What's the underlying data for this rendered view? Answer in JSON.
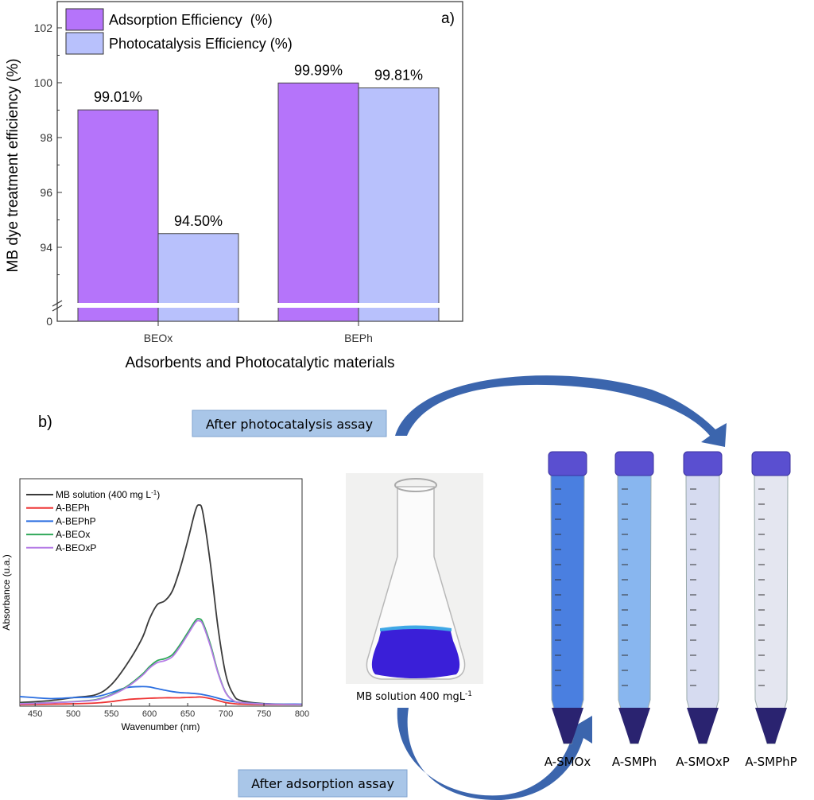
{
  "chart_data": [
    {
      "type": "bar",
      "panel_label": "a)",
      "ylabel": "MB dye treatment efficiency (%)",
      "xlabel": "Adsorbents and Photocatalytic materials",
      "categories": [
        "BEOx",
        "BEPh"
      ],
      "yticks": [
        "0",
        "94",
        "96",
        "98",
        "100",
        "102"
      ],
      "ylim_upper_segment": [
        92,
        103
      ],
      "axis_break": true,
      "legend_position": "top-left",
      "series": [
        {
          "name": "Adsorption Efficiency  (%)",
          "color": "#b574fa",
          "values": [
            99.01,
            99.99
          ],
          "labels": [
            "99.01%",
            "99.99%"
          ]
        },
        {
          "name": "Photocatalysis Efficiency (%)",
          "color": "#b8c1fc",
          "values": [
            94.5,
            99.81
          ],
          "labels": [
            "94.50%",
            "99.81%"
          ]
        }
      ]
    },
    {
      "type": "line",
      "panel_label": "b)",
      "xlabel": "Wavenumber (nm)",
      "ylabel": "Absorbance (u.a.)",
      "xlim": [
        430,
        800
      ],
      "xticks": [
        "450",
        "500",
        "550",
        "600",
        "650",
        "700",
        "750",
        "800"
      ],
      "legend_position": "top-left",
      "x": [
        430,
        470,
        500,
        530,
        550,
        570,
        590,
        600,
        610,
        620,
        630,
        640,
        650,
        660,
        665,
        670,
        680,
        690,
        700,
        710,
        720,
        750,
        800
      ],
      "series": [
        {
          "name": "MB solution (400 mg L",
          "sup": "-1",
          "tail": ")",
          "color": "#3a3a3a",
          "values": [
            0.01,
            0.02,
            0.035,
            0.05,
            0.1,
            0.2,
            0.33,
            0.43,
            0.5,
            0.52,
            0.57,
            0.68,
            0.82,
            0.97,
            1.0,
            0.96,
            0.7,
            0.38,
            0.15,
            0.05,
            0.02,
            0.005,
            0
          ]
        },
        {
          "name": "A-BEPh",
          "color": "#ee3535",
          "values": [
            0,
            0.002,
            0.004,
            0.008,
            0.015,
            0.025,
            0.03,
            0.032,
            0.033,
            0.034,
            0.034,
            0.034,
            0.036,
            0.037,
            0.038,
            0.037,
            0.03,
            0.02,
            0.01,
            0.005,
            0.002,
            0,
            0
          ]
        },
        {
          "name": "A-BEPhP",
          "color": "#2a6ee0",
          "values": [
            0.04,
            0.03,
            0.035,
            0.04,
            0.06,
            0.085,
            0.09,
            0.088,
            0.08,
            0.072,
            0.065,
            0.06,
            0.058,
            0.055,
            0.053,
            0.05,
            0.042,
            0.032,
            0.022,
            0.015,
            0.01,
            0.004,
            0.002
          ]
        },
        {
          "name": "A-BEOx",
          "color": "#2fa85a",
          "values": [
            0.005,
            0.01,
            0.015,
            0.025,
            0.05,
            0.09,
            0.15,
            0.19,
            0.22,
            0.23,
            0.25,
            0.3,
            0.36,
            0.42,
            0.43,
            0.41,
            0.3,
            0.16,
            0.06,
            0.02,
            0.01,
            0.003,
            0
          ]
        },
        {
          "name": "A-BEOxP",
          "color": "#b57be6",
          "values": [
            0.004,
            0.009,
            0.014,
            0.023,
            0.047,
            0.086,
            0.144,
            0.183,
            0.21,
            0.22,
            0.24,
            0.29,
            0.35,
            0.41,
            0.42,
            0.4,
            0.29,
            0.155,
            0.058,
            0.02,
            0.01,
            0.003,
            0
          ]
        }
      ]
    }
  ],
  "diagram": {
    "photocatalysis_label": "After photocatalysis assay",
    "adsorption_label": "After adsorption assay",
    "flask_caption": "MB solution 400 mgL",
    "flask_caption_sup": "-1",
    "tubes": [
      "A-SMOx",
      "A-SMPh",
      "A-SMOxP",
      "A-SMPhP"
    ],
    "arrow_color": "#3b65ad",
    "label_box_color": "#a9c6e8"
  }
}
